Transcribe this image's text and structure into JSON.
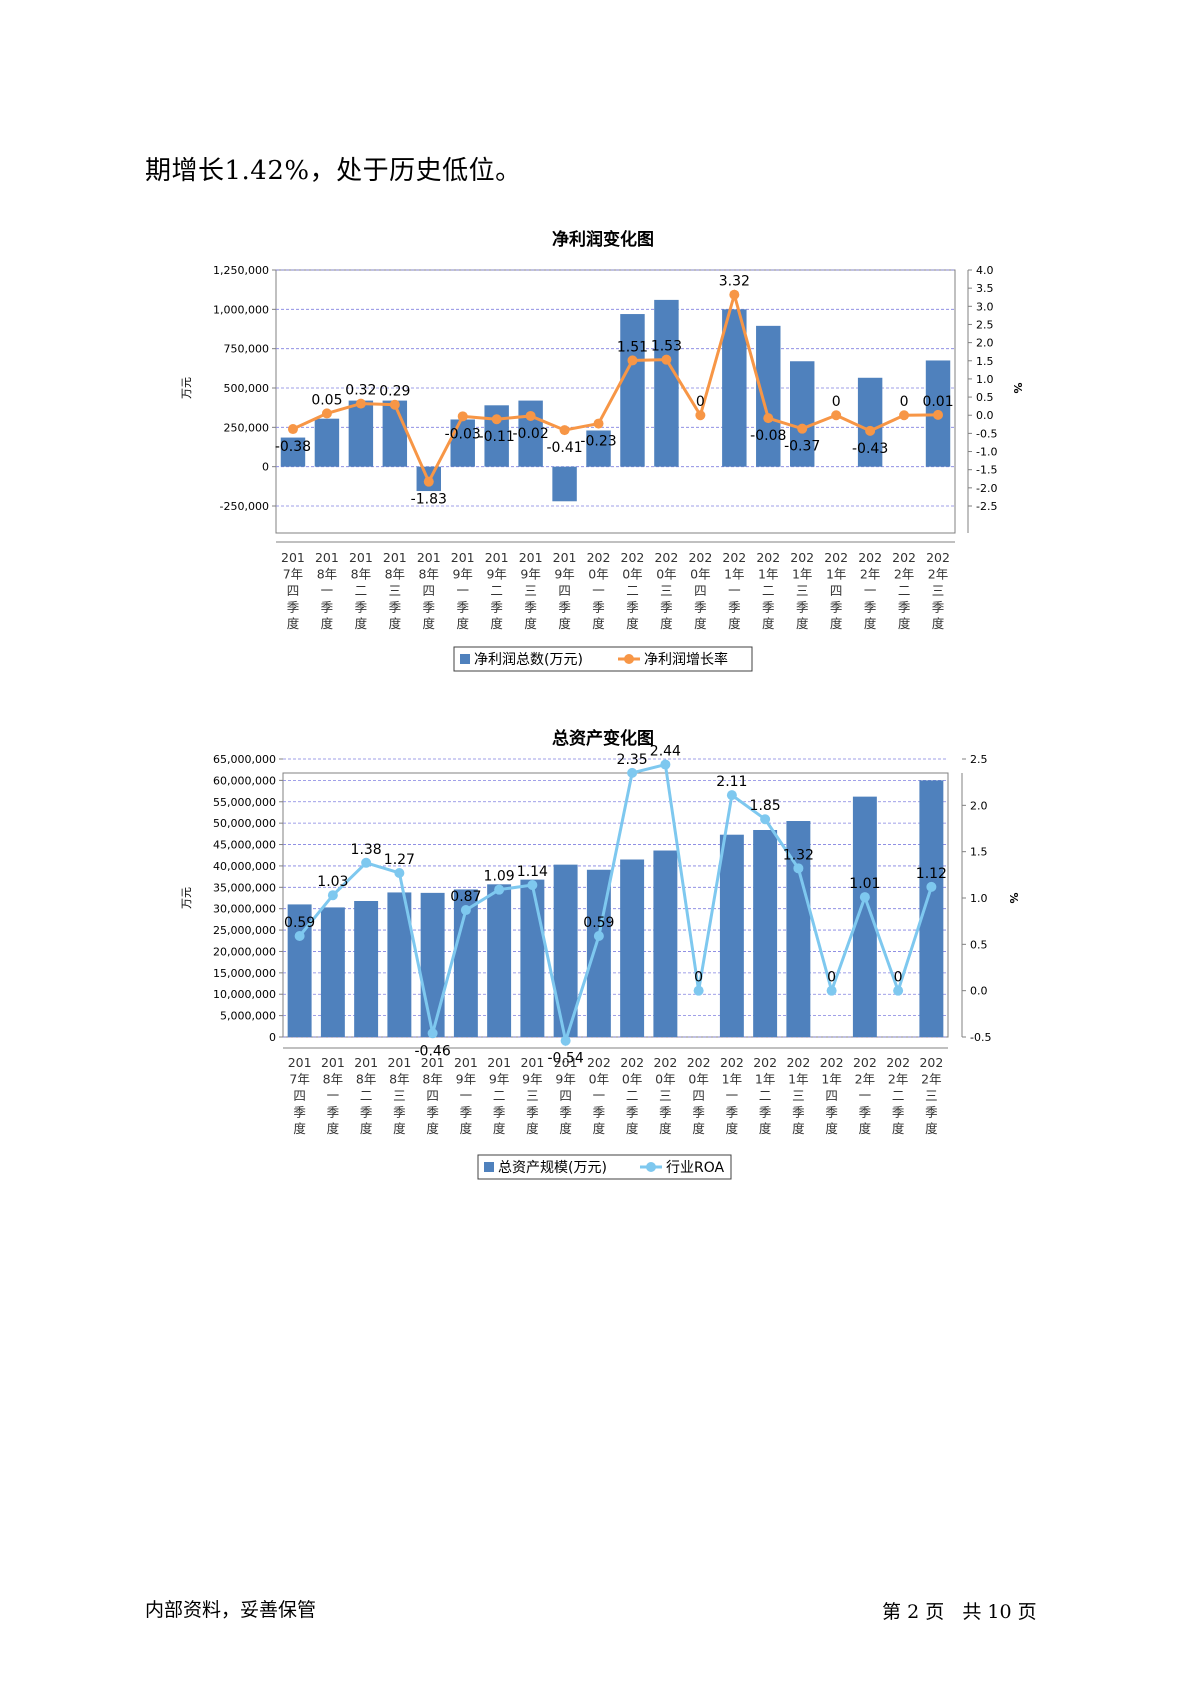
{
  "intro_text": "期增长1.42%，处于历史低位。",
  "footer": {
    "left": "内部资料，妥善保管",
    "page_prefix": "第",
    "page_num": "2",
    "page_mid": "页   共",
    "page_total": "10",
    "page_suffix": "页"
  },
  "categories": [
    [
      "201",
      "7年",
      "四",
      "季",
      "度"
    ],
    [
      "201",
      "8年",
      "一",
      "季",
      "度"
    ],
    [
      "201",
      "8年",
      "二",
      "季",
      "度"
    ],
    [
      "201",
      "8年",
      "三",
      "季",
      "度"
    ],
    [
      "201",
      "8年",
      "四",
      "季",
      "度"
    ],
    [
      "201",
      "9年",
      "一",
      "季",
      "度"
    ],
    [
      "201",
      "9年",
      "二",
      "季",
      "度"
    ],
    [
      "201",
      "9年",
      "三",
      "季",
      "度"
    ],
    [
      "201",
      "9年",
      "四",
      "季",
      "度"
    ],
    [
      "202",
      "0年",
      "一",
      "季",
      "度"
    ],
    [
      "202",
      "0年",
      "二",
      "季",
      "度"
    ],
    [
      "202",
      "0年",
      "三",
      "季",
      "度"
    ],
    [
      "202",
      "0年",
      "四",
      "季",
      "度"
    ],
    [
      "202",
      "1年",
      "一",
      "季",
      "度"
    ],
    [
      "202",
      "1年",
      "二",
      "季",
      "度"
    ],
    [
      "202",
      "1年",
      "三",
      "季",
      "度"
    ],
    [
      "202",
      "1年",
      "四",
      "季",
      "度"
    ],
    [
      "202",
      "2年",
      "一",
      "季",
      "度"
    ],
    [
      "202",
      "2年",
      "二",
      "季",
      "度"
    ],
    [
      "202",
      "2年",
      "三",
      "季",
      "度"
    ]
  ],
  "chart_data": [
    {
      "type": "bar",
      "title": "净利润变化图",
      "ylabel": "万元",
      "y2label": "%",
      "ylim": [
        -250000,
        1250000
      ],
      "y2lim": [
        -2.5,
        4.0
      ],
      "yticks": [
        "1,250,000",
        "1,000,000",
        "750,000",
        "500,000",
        "250,000",
        "0",
        "-250,000"
      ],
      "yticks_values": [
        1250000,
        1000000,
        750000,
        500000,
        250000,
        0,
        -250000
      ],
      "y2ticks": [
        "4.0",
        "3.5",
        "3.0",
        "2.5",
        "2.0",
        "1.5",
        "1.0",
        "0.5",
        "0.0",
        "-0.5",
        "-1.0",
        "-1.5",
        "-2.0",
        "-2.5"
      ],
      "y2ticks_values": [
        4.0,
        3.5,
        3.0,
        2.5,
        2.0,
        1.5,
        1.0,
        0.5,
        0.0,
        -0.5,
        -1.0,
        -1.5,
        -2.0,
        -2.5
      ],
      "grid": true,
      "legend_position": "bottom",
      "bar_series": {
        "name": "净利润总数(万元)",
        "color": "#4f81bd",
        "values": [
          185000,
          305000,
          420000,
          420000,
          -155000,
          300000,
          390000,
          420000,
          -220000,
          230000,
          970000,
          1060000,
          null,
          1000000,
          895000,
          670000,
          null,
          565000,
          null,
          675000
        ]
      },
      "line_series": {
        "name": "净利润增长率",
        "color": "#f79646",
        "values": [
          -0.38,
          0.05,
          0.32,
          0.29,
          -1.83,
          -0.03,
          -0.11,
          -0.02,
          -0.41,
          -0.23,
          1.51,
          1.53,
          0,
          3.32,
          -0.08,
          -0.37,
          0,
          -0.43,
          0,
          0.01
        ],
        "labels": [
          "-0.38",
          "0.05",
          "0.32",
          "0.29",
          "-1.83",
          "-0.03",
          "-0.11",
          "-0.02",
          "-0.41",
          "-0.23",
          "1.51",
          "1.53",
          "0",
          "3.32",
          "-0.08",
          "-0.37",
          "0",
          "-0.43",
          "0",
          "0.01"
        ]
      }
    },
    {
      "type": "bar",
      "title": "总资产变化图",
      "ylabel": "万元",
      "y2label": "%",
      "ylim": [
        0,
        65000000
      ],
      "y2lim": [
        -0.5,
        2.5
      ],
      "yticks": [
        "65,000,000",
        "60,000,000",
        "55,000,000",
        "50,000,000",
        "45,000,000",
        "40,000,000",
        "35,000,000",
        "30,000,000",
        "25,000,000",
        "20,000,000",
        "15,000,000",
        "10,000,000",
        "5,000,000",
        "0"
      ],
      "yticks_values": [
        65000000,
        60000000,
        55000000,
        50000000,
        45000000,
        40000000,
        35000000,
        30000000,
        25000000,
        20000000,
        15000000,
        10000000,
        5000000,
        0
      ],
      "y2ticks": [
        "2.5",
        "2.0",
        "1.5",
        "1.0",
        "0.5",
        "0.0",
        "-0.5"
      ],
      "y2ticks_values": [
        2.5,
        2.0,
        1.5,
        1.0,
        0.5,
        0.0,
        -0.5
      ],
      "grid": true,
      "legend_position": "bottom",
      "bar_series": {
        "name": "总资产规模(万元)",
        "color": "#4f81bd",
        "values": [
          31000000,
          30300000,
          31800000,
          33800000,
          33700000,
          34500000,
          35700000,
          36800000,
          40300000,
          39100000,
          41500000,
          43600000,
          null,
          47300000,
          48400000,
          50500000,
          null,
          56200000,
          null,
          60000000
        ]
      },
      "line_series": {
        "name": "行业ROA",
        "color": "#7ec8ef",
        "values": [
          0.59,
          1.03,
          1.38,
          1.27,
          -0.46,
          0.87,
          1.09,
          1.14,
          -0.54,
          0.59,
          2.35,
          2.44,
          0,
          2.11,
          1.85,
          1.32,
          0,
          1.01,
          0,
          1.12
        ],
        "labels": [
          "0.59",
          "1.03",
          "1.38",
          "1.27",
          "-0.46",
          "0.87",
          "1.09",
          "1.14",
          "-0.54",
          "0.59",
          "2.35",
          "2.44",
          "0",
          "2.11",
          "1.85",
          "1.32",
          "0",
          "1.01",
          "0",
          "1.12"
        ]
      }
    }
  ]
}
